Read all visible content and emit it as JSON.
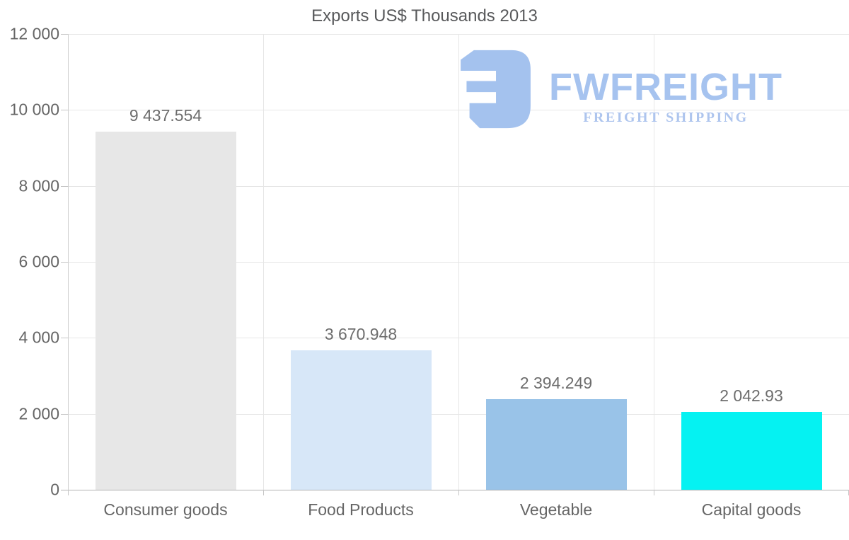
{
  "chart_data": {
    "type": "bar",
    "title": "Exports US$ Thousands 2013",
    "categories": [
      "Consumer goods",
      "Food Products",
      "Vegetable",
      "Capital goods"
    ],
    "values": [
      9437.554,
      3670.948,
      2394.249,
      2042.93
    ],
    "value_labels": [
      "9 437.554",
      "3 670.948",
      "2 394.249",
      "2 042.93"
    ],
    "bar_colors": [
      "#e7e7e7",
      "#d7e7f8",
      "#99c3e8",
      "#05f2f2"
    ],
    "xlabel": "",
    "ylabel": "",
    "ylim": [
      0,
      12000
    ],
    "ytick_step": 2000,
    "ytick_labels": [
      "0",
      "2 000",
      "4 000",
      "6 000",
      "8 000",
      "10 000",
      "12 000"
    ],
    "grid": true,
    "legend": false
  },
  "watermark": {
    "name": "FWFREIGHT",
    "tagline": "FREIGHT SHIPPING",
    "brand_color": "#a6c3ef",
    "tagline_color": "#aec5ee",
    "icon_color": "#a4c2ee"
  },
  "colors": {
    "title_text": "#58595b",
    "axis_label": "#666666",
    "data_label": "#6d6d6d",
    "gridline": "#e6e6e6",
    "baseline": "#b1b1b1"
  }
}
